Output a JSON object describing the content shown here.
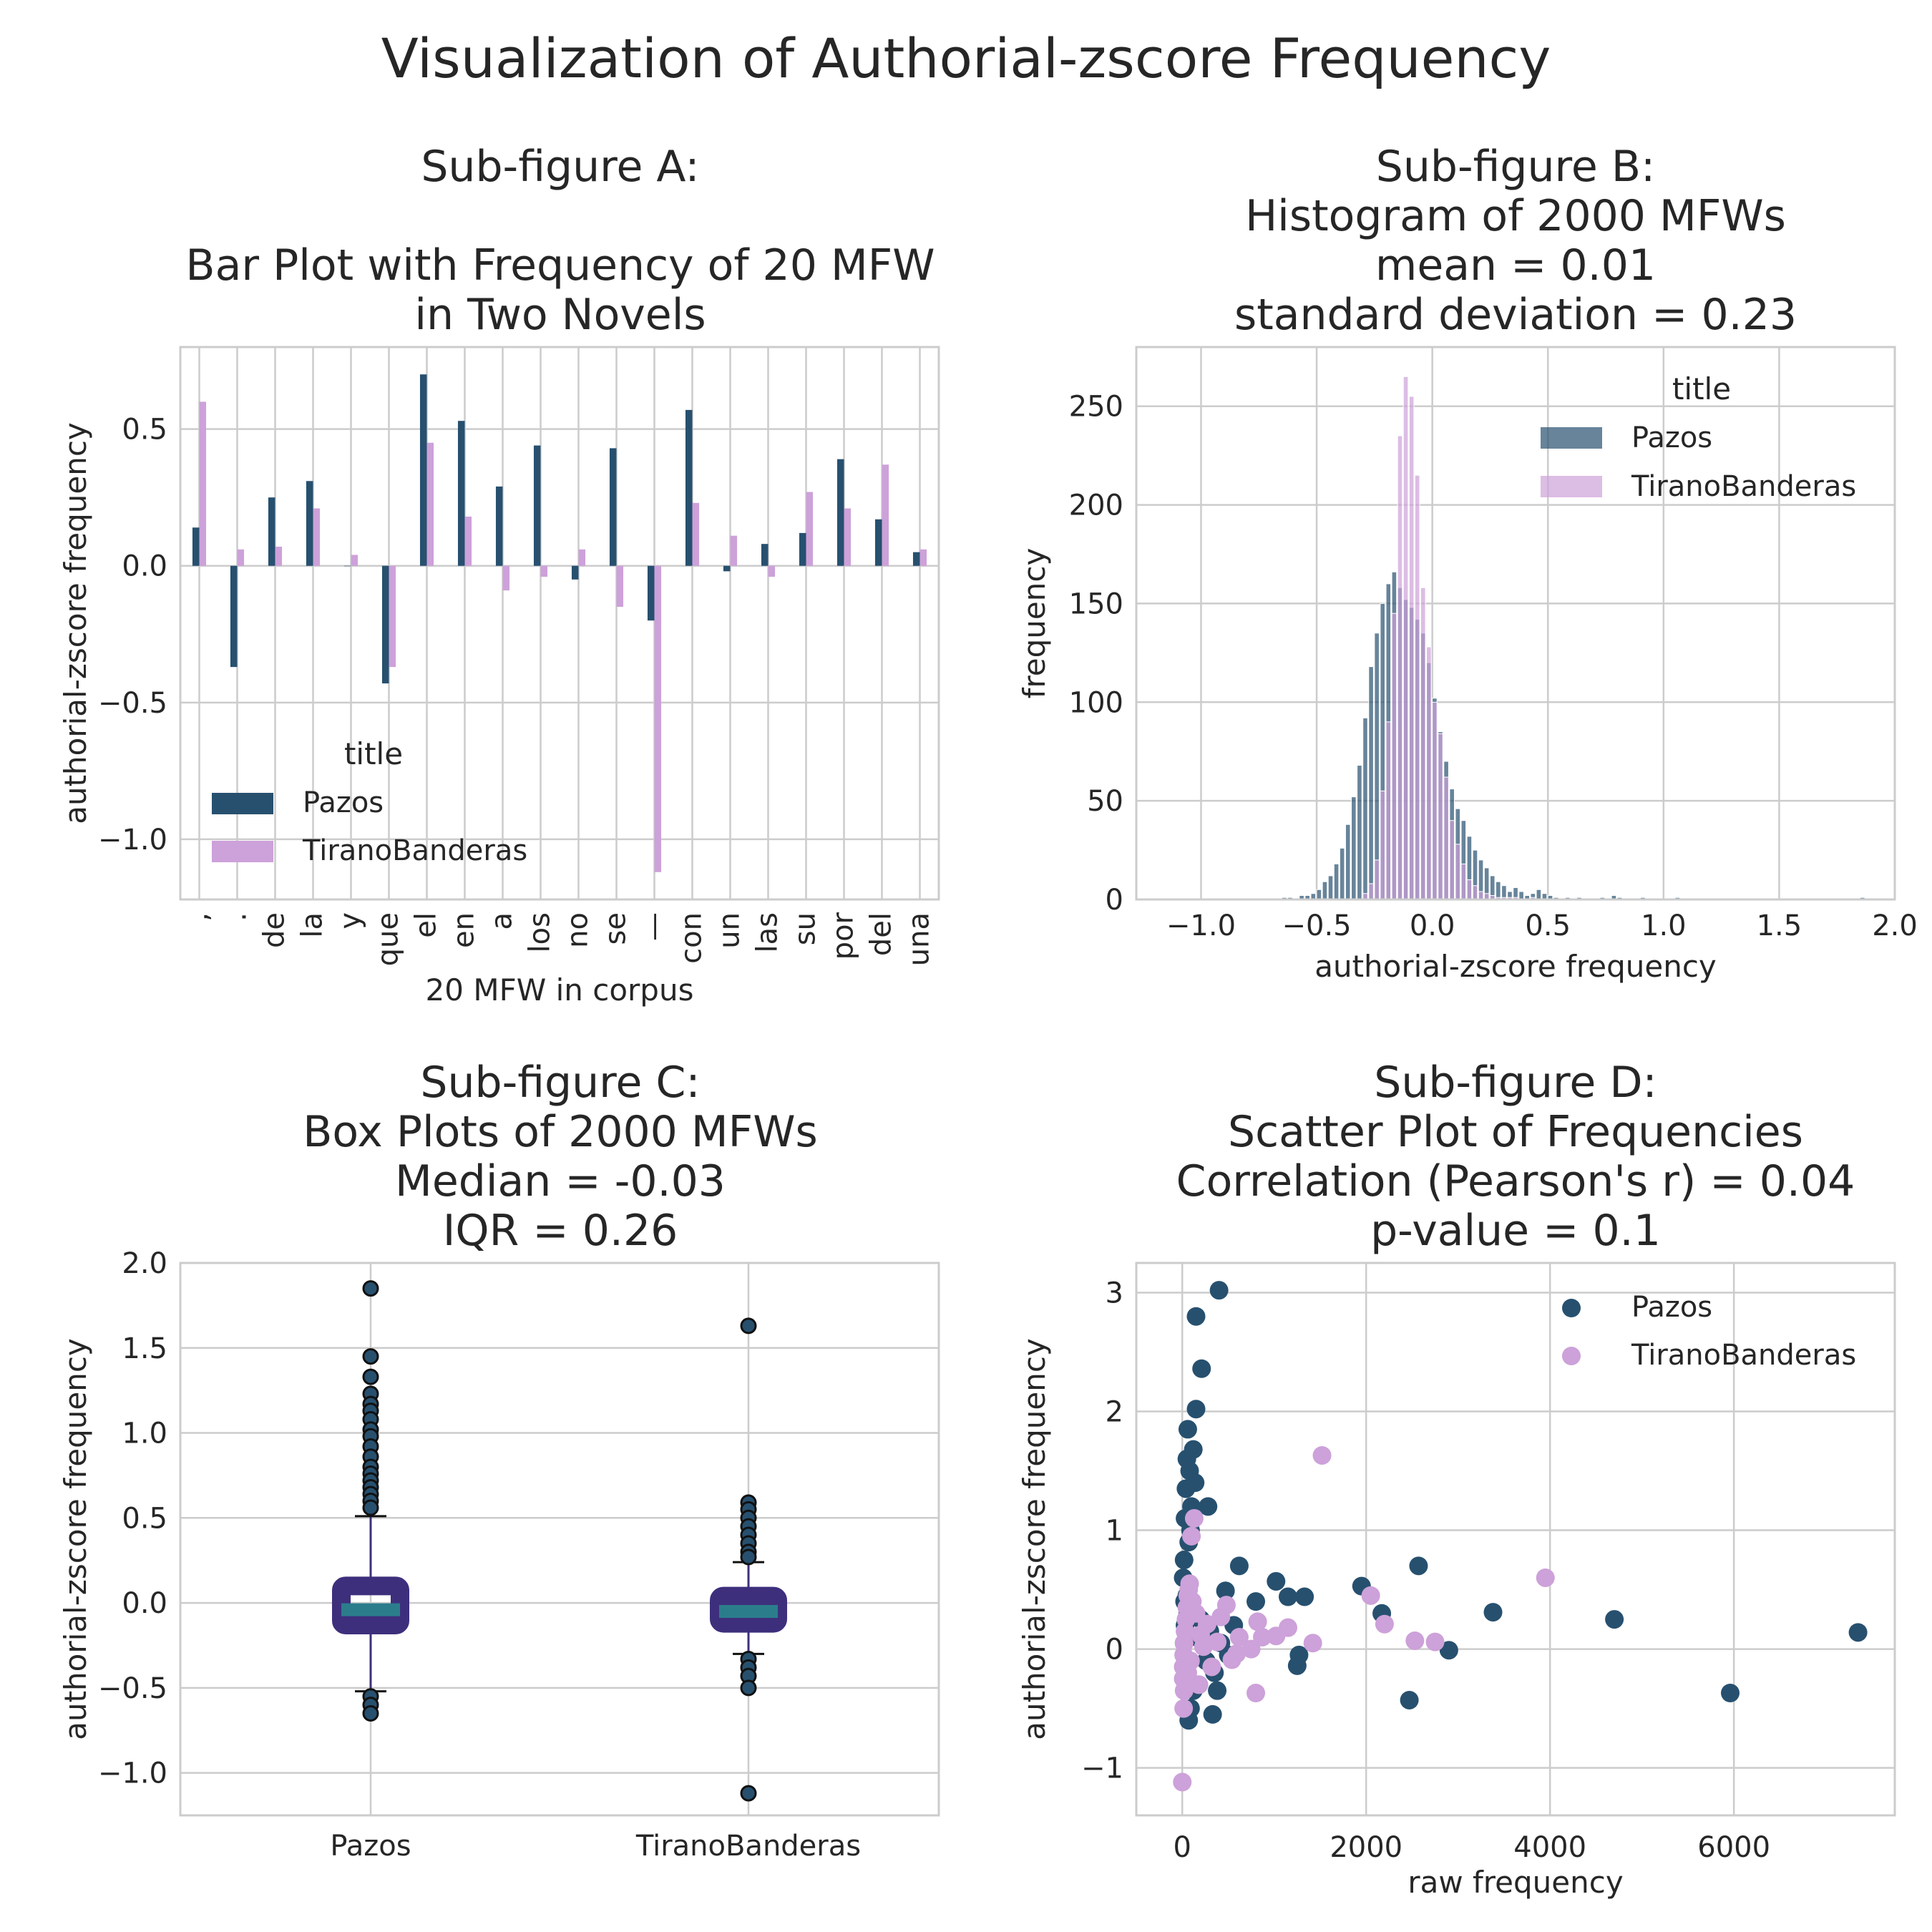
{
  "figure": {
    "title": "Visualization of Authorial-zscore Frequency"
  },
  "colors": {
    "pazos": "#27506f",
    "tirano": "#cda1d9",
    "box_fill": "#3e2f7c",
    "median": "#2b7d8c",
    "grid": "#cccccc",
    "axes_edge": "#cccccc"
  },
  "chart_data": [
    {
      "id": "A",
      "type": "bar",
      "title": "Sub-figure A:\n\nBar Plot with Frequency of 20 MFW\nin Two Novels",
      "xlabel": "20 MFW in corpus",
      "ylabel": "authorial-zscore frequency",
      "ylim": [
        -1.22,
        0.8
      ],
      "yticks": [
        0.5,
        0.0,
        -0.5,
        -1.0
      ],
      "ytick_labels": [
        "0.5",
        "0.0",
        "−0.5",
        "−1.0"
      ],
      "grid": true,
      "legend": {
        "title": "title",
        "placement": "lower-left",
        "entries": [
          "Pazos",
          "TiranoBanderas"
        ]
      },
      "categories": [
        ",",
        ".",
        "de",
        "la",
        "y",
        "que",
        "el",
        "en",
        "a",
        "los",
        "no",
        "se",
        "—",
        "con",
        "un",
        "las",
        "su",
        "por",
        "del",
        "una"
      ],
      "series": [
        {
          "name": "Pazos",
          "values": [
            0.14,
            -0.37,
            0.25,
            0.31,
            0.0,
            -0.43,
            0.7,
            0.53,
            0.29,
            0.44,
            -0.05,
            0.43,
            -0.2,
            0.57,
            -0.02,
            0.08,
            0.12,
            0.39,
            0.17,
            0.05
          ]
        },
        {
          "name": "TiranoBanderas",
          "values": [
            0.6,
            0.06,
            0.07,
            0.21,
            0.04,
            -0.37,
            0.45,
            0.18,
            -0.09,
            -0.04,
            0.06,
            -0.15,
            -1.12,
            0.23,
            0.11,
            -0.04,
            0.27,
            0.21,
            0.37,
            0.06
          ]
        }
      ]
    },
    {
      "id": "B",
      "type": "histogram",
      "title": "Sub-figure B:\nHistogram of 2000 MFWs\nmean =  0.01\nstandard deviation = 0.23",
      "xlabel": "authorial-zscore frequency",
      "ylabel": "frequency",
      "xlim": [
        -1.28,
        2.0
      ],
      "ylim": [
        0,
        280
      ],
      "xticks": [
        -1.0,
        -0.5,
        0.0,
        0.5,
        1.0,
        1.5,
        2.0
      ],
      "xtick_labels": [
        "−1.0",
        "−0.5",
        "0.0",
        "0.5",
        "1.0",
        "1.5",
        "2.0"
      ],
      "yticks": [
        0,
        50,
        100,
        150,
        200,
        250
      ],
      "ytick_labels": [
        "0",
        "50",
        "100",
        "150",
        "200",
        "250"
      ],
      "grid": true,
      "legend": {
        "title": "title",
        "placement": "upper-right",
        "entries": [
          "Pazos",
          "TiranoBanderas"
        ]
      },
      "series": [
        {
          "name": "Pazos",
          "bin_start": -0.65,
          "bin_width": 0.025,
          "counts": [
            1,
            1,
            0,
            2,
            2,
            3,
            5,
            9,
            12,
            18,
            26,
            38,
            52,
            68,
            92,
            118,
            135,
            150,
            160,
            166,
            158,
            152,
            148,
            142,
            135,
            120,
            102,
            85,
            70,
            56,
            46,
            40,
            32,
            25,
            20,
            16,
            12,
            9,
            7,
            4,
            6,
            4,
            2,
            3,
            5,
            3,
            2,
            1,
            0,
            1,
            0,
            1,
            0,
            0,
            0,
            1,
            0,
            2,
            1,
            0,
            0,
            0,
            1,
            0,
            0,
            0,
            0,
            0,
            1,
            0,
            0,
            0,
            0,
            0,
            0,
            0,
            0,
            0,
            0,
            0,
            0,
            0,
            0,
            0,
            0,
            0,
            0,
            0,
            0,
            0,
            0,
            0,
            0,
            0,
            0,
            0,
            0,
            0,
            0,
            0,
            1
          ]
        },
        {
          "name": "TiranoBanderas",
          "bin_start": -0.3,
          "bin_width": 0.025,
          "counts": [
            3,
            8,
            20,
            55,
            90,
            145,
            235,
            265,
            255,
            215,
            158,
            128,
            100,
            84,
            62,
            40,
            28,
            18,
            10,
            7,
            4,
            3,
            2,
            1,
            1,
            1,
            1,
            0,
            0,
            1
          ]
        }
      ]
    },
    {
      "id": "C",
      "type": "box",
      "title": "Sub-figure C:\nBox Plots of 2000 MFWs\nMedian =  -0.03\nIQR = 0.26",
      "ylabel": "authorial-zscore frequency",
      "categories": [
        "Pazos",
        "TiranoBanderas"
      ],
      "ylim": [
        -1.25,
        2.0
      ],
      "yticks": [
        2.0,
        1.5,
        1.0,
        0.5,
        0.0,
        -0.5,
        -1.0
      ],
      "ytick_labels": [
        "2.0",
        "1.5",
        "1.0",
        "0.5",
        "0.0",
        "−0.5",
        "−1.0"
      ],
      "grid": true,
      "boxes": [
        {
          "name": "Pazos",
          "whisker_low": -0.52,
          "q1": -0.13,
          "median": -0.04,
          "q3": 0.1,
          "whisker_high": 0.51,
          "outliers": [
            1.85,
            1.45,
            1.33,
            1.23,
            1.17,
            1.13,
            1.08,
            1.02,
            0.98,
            0.92,
            0.86,
            0.8,
            0.76,
            0.72,
            0.68,
            0.64,
            0.6,
            0.56,
            -0.55,
            -0.6,
            -0.65
          ]
        },
        {
          "name": "TiranoBanderas",
          "whisker_low": -0.3,
          "q1": -0.12,
          "median": -0.05,
          "q3": 0.04,
          "whisker_high": 0.24,
          "outliers": [
            1.63,
            0.59,
            0.55,
            0.5,
            0.45,
            0.4,
            0.35,
            0.3,
            0.27,
            -0.33,
            -0.38,
            -0.43,
            -0.5,
            -1.12
          ]
        }
      ]
    },
    {
      "id": "D",
      "type": "scatter",
      "title": "Sub-figure D:\nScatter Plot of Frequencies\nCorrelation (Pearson's r) =  0.04\np-value = 0.1",
      "xlabel": "raw frequency",
      "ylabel": "authorial-zscore frequency",
      "xlim": [
        -500,
        7750
      ],
      "ylim": [
        -1.4,
        3.25
      ],
      "xticks": [
        0,
        2000,
        4000,
        6000
      ],
      "xtick_labels": [
        "0",
        "2000",
        "4000",
        "6000"
      ],
      "yticks": [
        3,
        2,
        1,
        0,
        -1
      ],
      "ytick_labels": [
        "3",
        "2",
        "1",
        "0",
        "−1"
      ],
      "grid": true,
      "legend": {
        "placement": "upper-right",
        "entries": [
          "Pazos",
          "TiranoBanderas"
        ]
      },
      "series": [
        {
          "name": "Pazos",
          "points": [
            [
              7350,
              0.14
            ],
            [
              5960,
              -0.37
            ],
            [
              4700,
              0.25
            ],
            [
              3380,
              0.31
            ],
            [
              2900,
              -0.01
            ],
            [
              2470,
              -0.43
            ],
            [
              2570,
              0.7
            ],
            [
              2170,
              0.3
            ],
            [
              1950,
              0.53
            ],
            [
              1330,
              0.44
            ],
            [
              1270,
              -0.05
            ],
            [
              1250,
              -0.14
            ],
            [
              1150,
              0.44
            ],
            [
              1020,
              0.57
            ],
            [
              800,
              0.4
            ],
            [
              620,
              0.7
            ],
            [
              560,
              0.2
            ],
            [
              470,
              0.49
            ],
            [
              400,
              3.02
            ],
            [
              380,
              -0.35
            ],
            [
              330,
              -0.55
            ],
            [
              280,
              1.2
            ],
            [
              240,
              0.08
            ],
            [
              210,
              2.36
            ],
            [
              180,
              -0.3
            ],
            [
              150,
              2.8
            ],
            [
              150,
              2.02
            ],
            [
              140,
              1.4
            ],
            [
              120,
              1.68
            ],
            [
              100,
              1.2
            ],
            [
              90,
              1.0
            ],
            [
              80,
              1.5
            ],
            [
              70,
              0.9
            ],
            [
              60,
              1.85
            ],
            [
              50,
              1.6
            ],
            [
              40,
              1.35
            ],
            [
              30,
              1.1
            ],
            [
              20,
              0.75
            ],
            [
              10,
              0.6
            ],
            [
              50,
              0.45
            ],
            [
              60,
              0.3
            ],
            [
              70,
              -0.6
            ],
            [
              90,
              -0.5
            ],
            [
              120,
              -0.35
            ],
            [
              160,
              0.1
            ],
            [
              200,
              0.25
            ],
            [
              260,
              -0.1
            ],
            [
              300,
              0.15
            ],
            [
              350,
              -0.2
            ],
            [
              420,
              0.05
            ],
            [
              500,
              -0.05
            ],
            [
              30,
              0.2
            ],
            [
              40,
              -0.2
            ],
            [
              20,
              0.05
            ],
            [
              15,
              -0.15
            ],
            [
              25,
              0.4
            ]
          ]
        },
        {
          "name": "TiranoBanderas",
          "points": [
            [
              3950,
              0.6
            ],
            [
              2750,
              0.06
            ],
            [
              2530,
              0.07
            ],
            [
              2200,
              0.21
            ],
            [
              2050,
              0.45
            ],
            [
              1520,
              1.63
            ],
            [
              1420,
              0.05
            ],
            [
              1150,
              0.18
            ],
            [
              1020,
              0.11
            ],
            [
              870,
              0.1
            ],
            [
              820,
              0.23
            ],
            [
              800,
              -0.37
            ],
            [
              750,
              0.0
            ],
            [
              620,
              0.1
            ],
            [
              590,
              -0.04
            ],
            [
              540,
              -0.09
            ],
            [
              480,
              0.37
            ],
            [
              420,
              0.27
            ],
            [
              380,
              0.06
            ],
            [
              320,
              -0.15
            ],
            [
              270,
              0.21
            ],
            [
              200,
              0.12
            ],
            [
              130,
              1.1
            ],
            [
              100,
              0.95
            ],
            [
              80,
              0.55
            ],
            [
              60,
              0.45
            ],
            [
              50,
              0.35
            ],
            [
              40,
              0.25
            ],
            [
              30,
              0.15
            ],
            [
              20,
              0.05
            ],
            [
              15,
              -0.05
            ],
            [
              10,
              -0.15
            ],
            [
              10,
              -0.25
            ],
            [
              20,
              -0.35
            ],
            [
              15,
              -0.5
            ],
            [
              0,
              -1.12
            ],
            [
              60,
              -0.2
            ],
            [
              90,
              -0.1
            ],
            [
              150,
              0.3
            ],
            [
              180,
              -0.3
            ],
            [
              230,
              0.02
            ],
            [
              110,
              0.4
            ],
            [
              70,
              0.5
            ]
          ]
        }
      ]
    }
  ]
}
